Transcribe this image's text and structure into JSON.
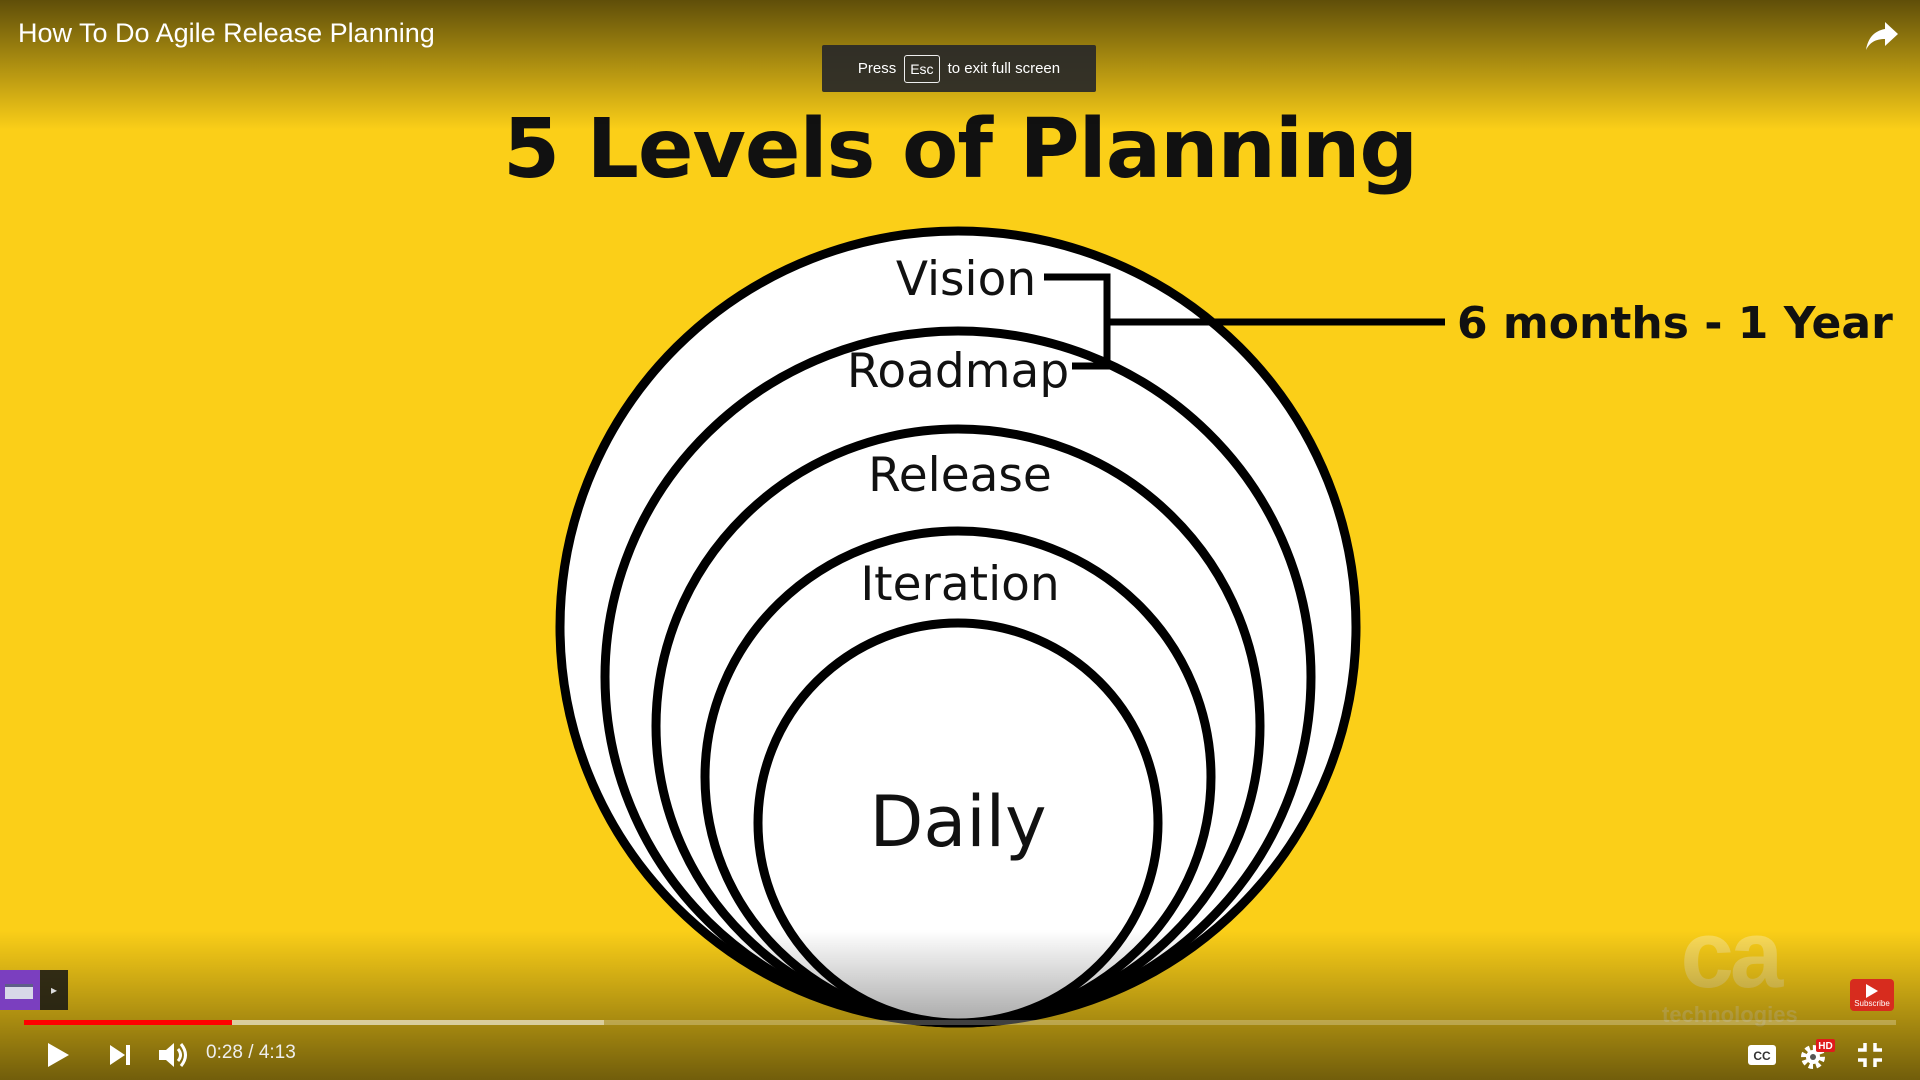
{
  "video": {
    "title": "How To Do Agile Release Planning",
    "current_time": "0:28",
    "duration": "4:13",
    "time_display": "0:28 / 4:13",
    "progress_fraction": 0.111,
    "buffered_fraction": 0.31
  },
  "toast": {
    "press": "Press",
    "key": "Esc",
    "message": "to exit full screen"
  },
  "slide": {
    "title": "5 Levels of Planning",
    "levels": [
      "Vision",
      "Roadmap",
      "Release",
      "Iteration",
      "Daily"
    ],
    "bracket_label": "6 months - 1 Year"
  },
  "watermark": {
    "logo": "ca",
    "text": "technologies"
  },
  "subscribe": {
    "label": "Subscribe"
  },
  "badges": {
    "hd": "HD"
  },
  "icons": {
    "share": "share-icon",
    "play": "play-icon",
    "next": "next-icon",
    "volume": "volume-icon",
    "captions": "cc-icon",
    "settings": "gear-icon",
    "exit_fullscreen": "exit-fullscreen-icon"
  },
  "colors": {
    "background": "#fbcf18",
    "progress_played": "#ff0000",
    "hd_badge": "#e01b1b"
  }
}
